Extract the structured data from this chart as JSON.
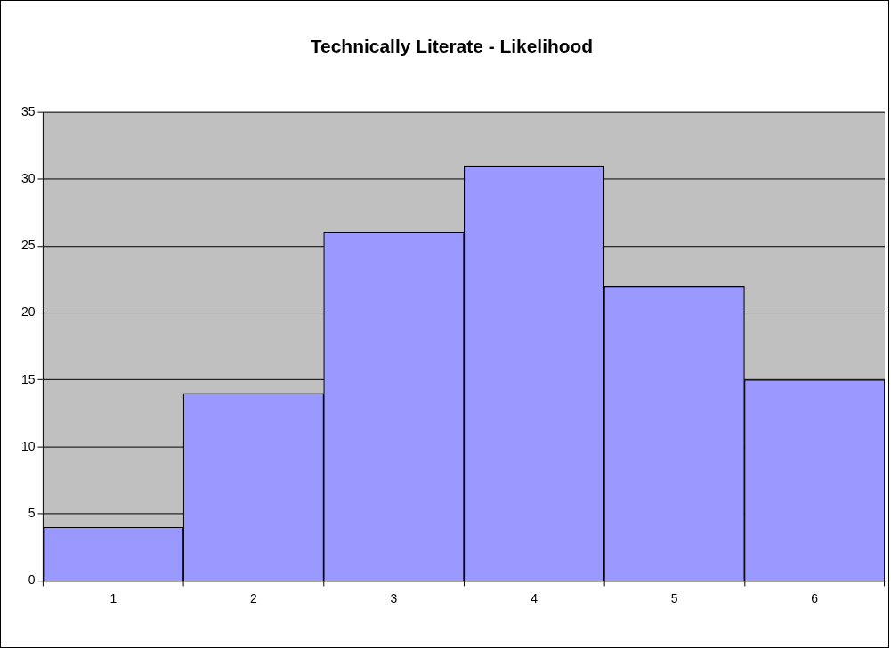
{
  "chart_data": {
    "type": "bar",
    "title": "Technically Literate - Likelihood",
    "categories": [
      "1",
      "2",
      "3",
      "4",
      "5",
      "6"
    ],
    "values": [
      4,
      14,
      26,
      31,
      22,
      15
    ],
    "color": "#9999ff",
    "ylim": [
      0,
      35
    ],
    "yticks": [
      0,
      5,
      10,
      15,
      20,
      25,
      30,
      35
    ],
    "grid": "y",
    "legend": false
  }
}
